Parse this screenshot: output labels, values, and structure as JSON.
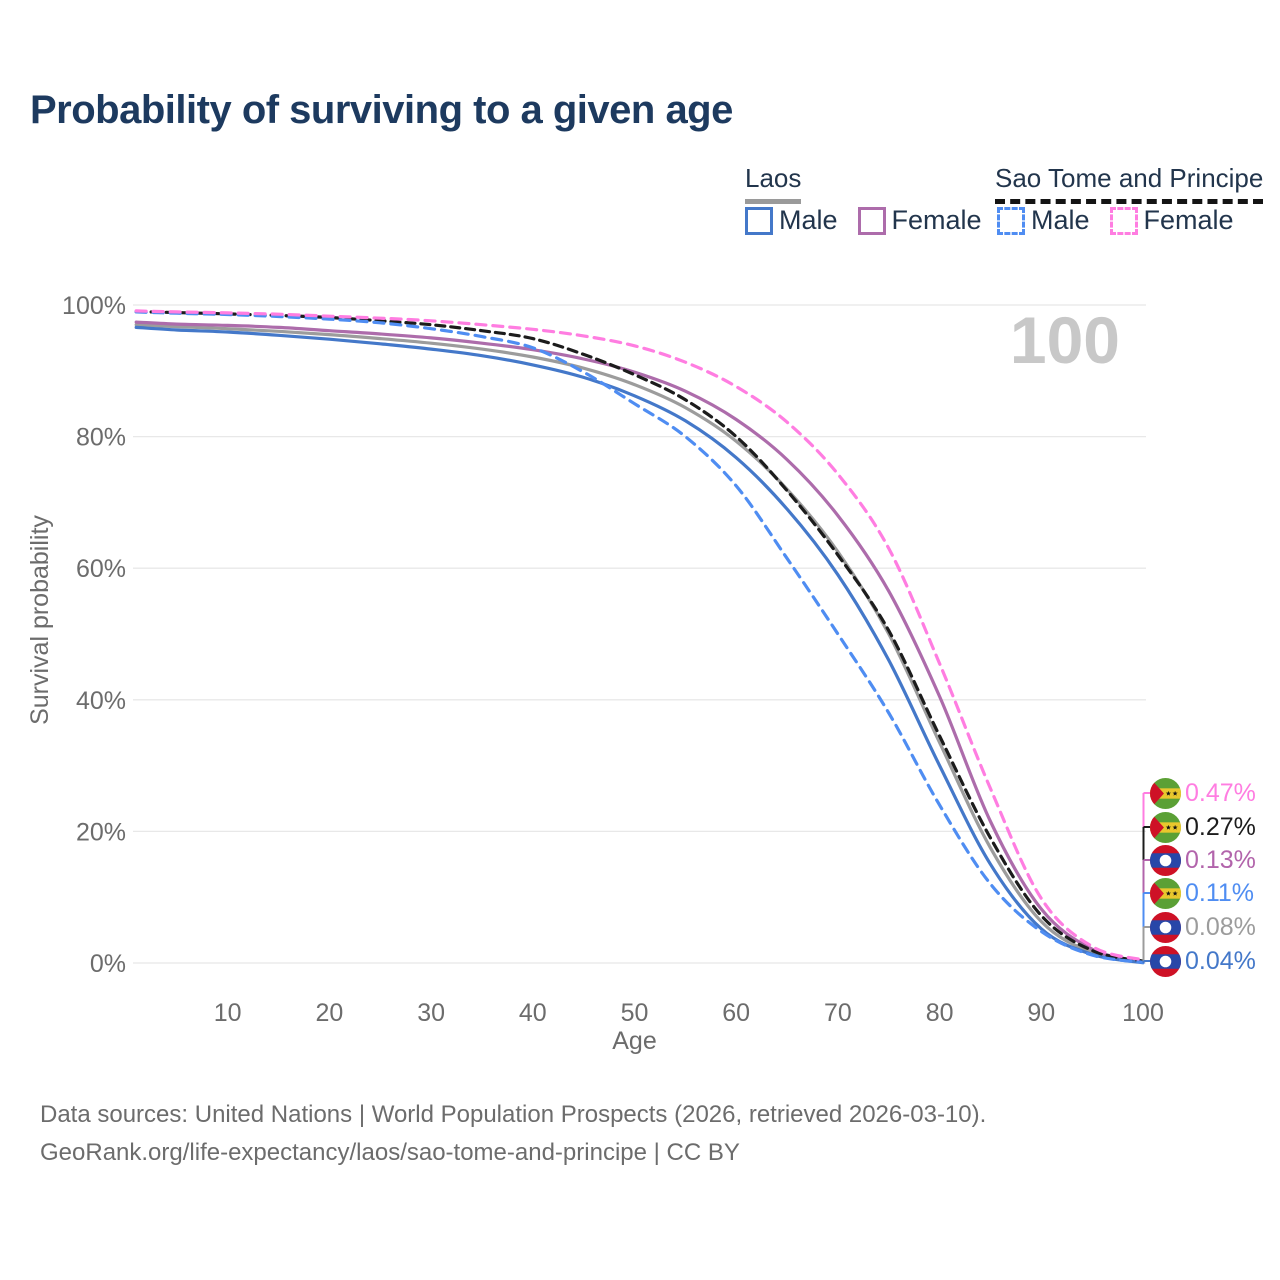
{
  "title": "Probability of surviving to a given age",
  "watermark": "100",
  "legend": {
    "groups": [
      {
        "label": "Laos",
        "line_style": "solid",
        "underline_color": "#9a9a9a",
        "items": [
          {
            "label": "Male",
            "color": "#4478c9"
          },
          {
            "label": "Female",
            "color": "#ad6cab"
          }
        ]
      },
      {
        "label": "Sao Tome and Principe",
        "line_style": "dashed",
        "underline_color": "#141414",
        "items": [
          {
            "label": "Male",
            "color": "#4f8df2"
          },
          {
            "label": "Female",
            "color": "#ff7de1"
          }
        ]
      }
    ]
  },
  "axes": {
    "x": {
      "label": "Age",
      "min": 0,
      "max": 100,
      "ticks": [
        10,
        20,
        30,
        40,
        50,
        60,
        70,
        80,
        90,
        100
      ]
    },
    "y": {
      "label": "Survival probability",
      "min": 0,
      "max": 100,
      "tick_values": [
        0,
        20,
        40,
        60,
        80,
        100
      ],
      "tick_labels": [
        "0%",
        "20%",
        "40%",
        "60%",
        "80%",
        "100%"
      ]
    }
  },
  "chart_data": {
    "type": "line",
    "title": "Probability of surviving to a given age",
    "xlabel": "Age",
    "ylabel": "Survival probability",
    "xlim": [
      0,
      100
    ],
    "ylim": [
      0,
      100
    ],
    "grid": "horizontal",
    "x": [
      1,
      5,
      10,
      15,
      20,
      25,
      30,
      35,
      40,
      45,
      50,
      55,
      60,
      65,
      70,
      75,
      80,
      85,
      90,
      95,
      100
    ],
    "series": [
      {
        "name": "Laos Total",
        "country": "laos",
        "sex": "total",
        "style": "solid",
        "color": "#9c9c9c",
        "values": [
          97.0,
          96.7,
          96.4,
          96.0,
          95.5,
          94.9,
          94.2,
          93.3,
          92.1,
          90.4,
          87.9,
          84.4,
          79.3,
          72.0,
          62.5,
          50.0,
          33.5,
          17.5,
          6.3,
          1.6,
          0.08
        ]
      },
      {
        "name": "Laos Female",
        "country": "laos",
        "sex": "female",
        "style": "solid",
        "color": "#ad6cab",
        "values": [
          97.4,
          97.1,
          96.9,
          96.6,
          96.1,
          95.6,
          95.0,
          94.2,
          93.2,
          91.8,
          89.8,
          86.9,
          82.6,
          76.5,
          68.0,
          56.5,
          40.5,
          21.5,
          8.2,
          2.1,
          0.13
        ]
      },
      {
        "name": "Laos Male",
        "country": "laos",
        "sex": "male",
        "style": "solid",
        "color": "#4478c9",
        "values": [
          96.6,
          96.2,
          95.9,
          95.4,
          94.8,
          94.1,
          93.3,
          92.3,
          90.9,
          89.0,
          86.2,
          82.4,
          76.8,
          69.0,
          59.0,
          46.0,
          30.0,
          15.0,
          5.2,
          1.3,
          0.04
        ]
      },
      {
        "name": "Sao Tome and Principe Total",
        "country": "stp",
        "sex": "total",
        "style": "dashed",
        "color": "#1c1c1c",
        "values": [
          99.0,
          98.85,
          98.65,
          98.4,
          98.1,
          97.6,
          97.0,
          96.1,
          94.9,
          92.5,
          89.4,
          85.6,
          80.0,
          71.8,
          62.0,
          50.5,
          34.5,
          19.0,
          7.2,
          1.9,
          0.27
        ]
      },
      {
        "name": "Sao Tome and Principe Male",
        "country": "stp",
        "sex": "male",
        "style": "dashed",
        "color": "#4f8df2",
        "values": [
          98.95,
          98.75,
          98.55,
          98.25,
          97.85,
          97.3,
          96.4,
          95.2,
          93.5,
          89.8,
          85.0,
          80.0,
          72.5,
          61.5,
          50.0,
          38.0,
          24.0,
          12.0,
          4.8,
          1.2,
          0.11
        ]
      },
      {
        "name": "Sao Tome and Principe Female",
        "country": "stp",
        "sex": "female",
        "style": "dashed",
        "color": "#ff7de1",
        "values": [
          99.1,
          98.95,
          98.8,
          98.6,
          98.3,
          98.0,
          97.6,
          97.0,
          96.3,
          95.3,
          93.8,
          91.3,
          87.6,
          82.2,
          74.3,
          63.0,
          45.5,
          26.5,
          9.8,
          2.5,
          0.47
        ]
      }
    ]
  },
  "end_labels": [
    {
      "country": "stp",
      "flag_icon": "sao-tome-and-principe-flag-icon",
      "label": "0.47%",
      "color": "#ff7de1"
    },
    {
      "country": "stp",
      "flag_icon": "sao-tome-and-principe-flag-icon",
      "label": "0.27%",
      "color": "#1c1c1c"
    },
    {
      "country": "laos",
      "flag_icon": "laos-flag-icon",
      "label": "0.13%",
      "color": "#b264ab"
    },
    {
      "country": "stp",
      "flag_icon": "sao-tome-and-principe-flag-icon",
      "label": "0.11%",
      "color": "#4f8df2"
    },
    {
      "country": "laos",
      "flag_icon": "laos-flag-icon",
      "label": "0.08%",
      "color": "#9c9c9c"
    },
    {
      "country": "laos",
      "flag_icon": "laos-flag-icon",
      "label": "0.04%",
      "color": "#4478c9"
    }
  ],
  "footer": {
    "line1": "Data sources: United Nations | World Population Prospects (2026, retrieved 2026-03-10).",
    "line2": "GeoRank.org/life-expectancy/laos/sao-tome-and-principe | CC BY"
  },
  "colors": {
    "title": "#1d3a5f",
    "axis_text": "#6c6c6c",
    "gridline": "#e8e8e8",
    "watermark": "#c8c8c8",
    "legend_text": "#22354c"
  }
}
